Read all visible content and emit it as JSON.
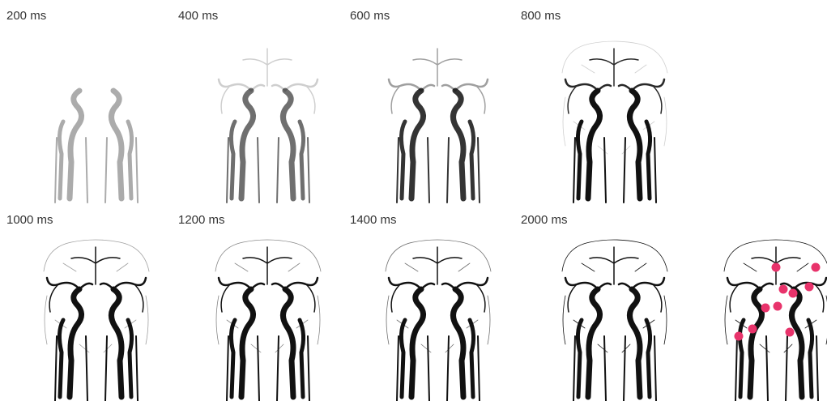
{
  "panels": [
    {
      "label": "200 ms"
    },
    {
      "label": "400 ms"
    },
    {
      "label": "600 ms"
    },
    {
      "label": "800 ms"
    },
    {
      "label": "1000 ms"
    },
    {
      "label": "1200 ms"
    },
    {
      "label": "1400 ms"
    },
    {
      "label": "2000 ms"
    }
  ]
}
